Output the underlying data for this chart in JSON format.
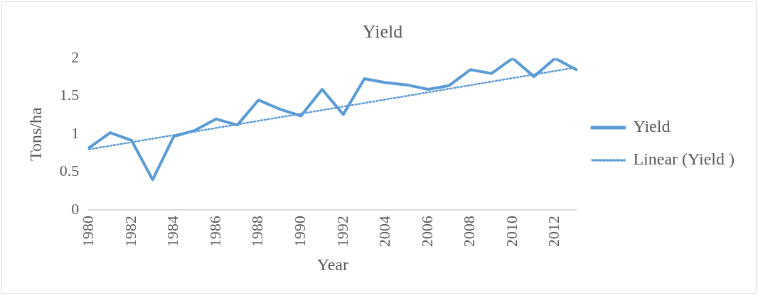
{
  "chart_data": {
    "type": "line",
    "title": "Yield",
    "xlabel": "Year",
    "ylabel": "Tons/ha",
    "categories": [
      "1980",
      null,
      "1982",
      null,
      "1984",
      null,
      "1986",
      null,
      "1988",
      null,
      "1990",
      null,
      "1992",
      null,
      "2004",
      null,
      "2006",
      null,
      "2008",
      null,
      "2010",
      null,
      "2012",
      null
    ],
    "series": [
      {
        "name": "Yield",
        "color": "#5b9bd5",
        "values": [
          0.82,
          1.02,
          0.92,
          0.4,
          0.97,
          1.05,
          1.2,
          1.12,
          1.45,
          1.33,
          1.24,
          1.59,
          1.26,
          1.73,
          1.68,
          1.65,
          1.59,
          1.64,
          1.85,
          1.8,
          2.0,
          1.76,
          2.0,
          1.85
        ]
      },
      {
        "name": "Linear (Yield )",
        "color": "#5b9bd5",
        "line_style": "dotted",
        "values": [
          0.8,
          null,
          null,
          null,
          null,
          null,
          null,
          null,
          null,
          null,
          null,
          null,
          null,
          null,
          null,
          null,
          null,
          null,
          null,
          null,
          null,
          null,
          null,
          1.88
        ]
      }
    ],
    "ylim": [
      0,
      2
    ],
    "yticks": [
      0,
      0.5,
      1,
      1.5,
      2
    ],
    "grid": false,
    "legend": "right",
    "marker": "none",
    "line_style": "solid"
  }
}
